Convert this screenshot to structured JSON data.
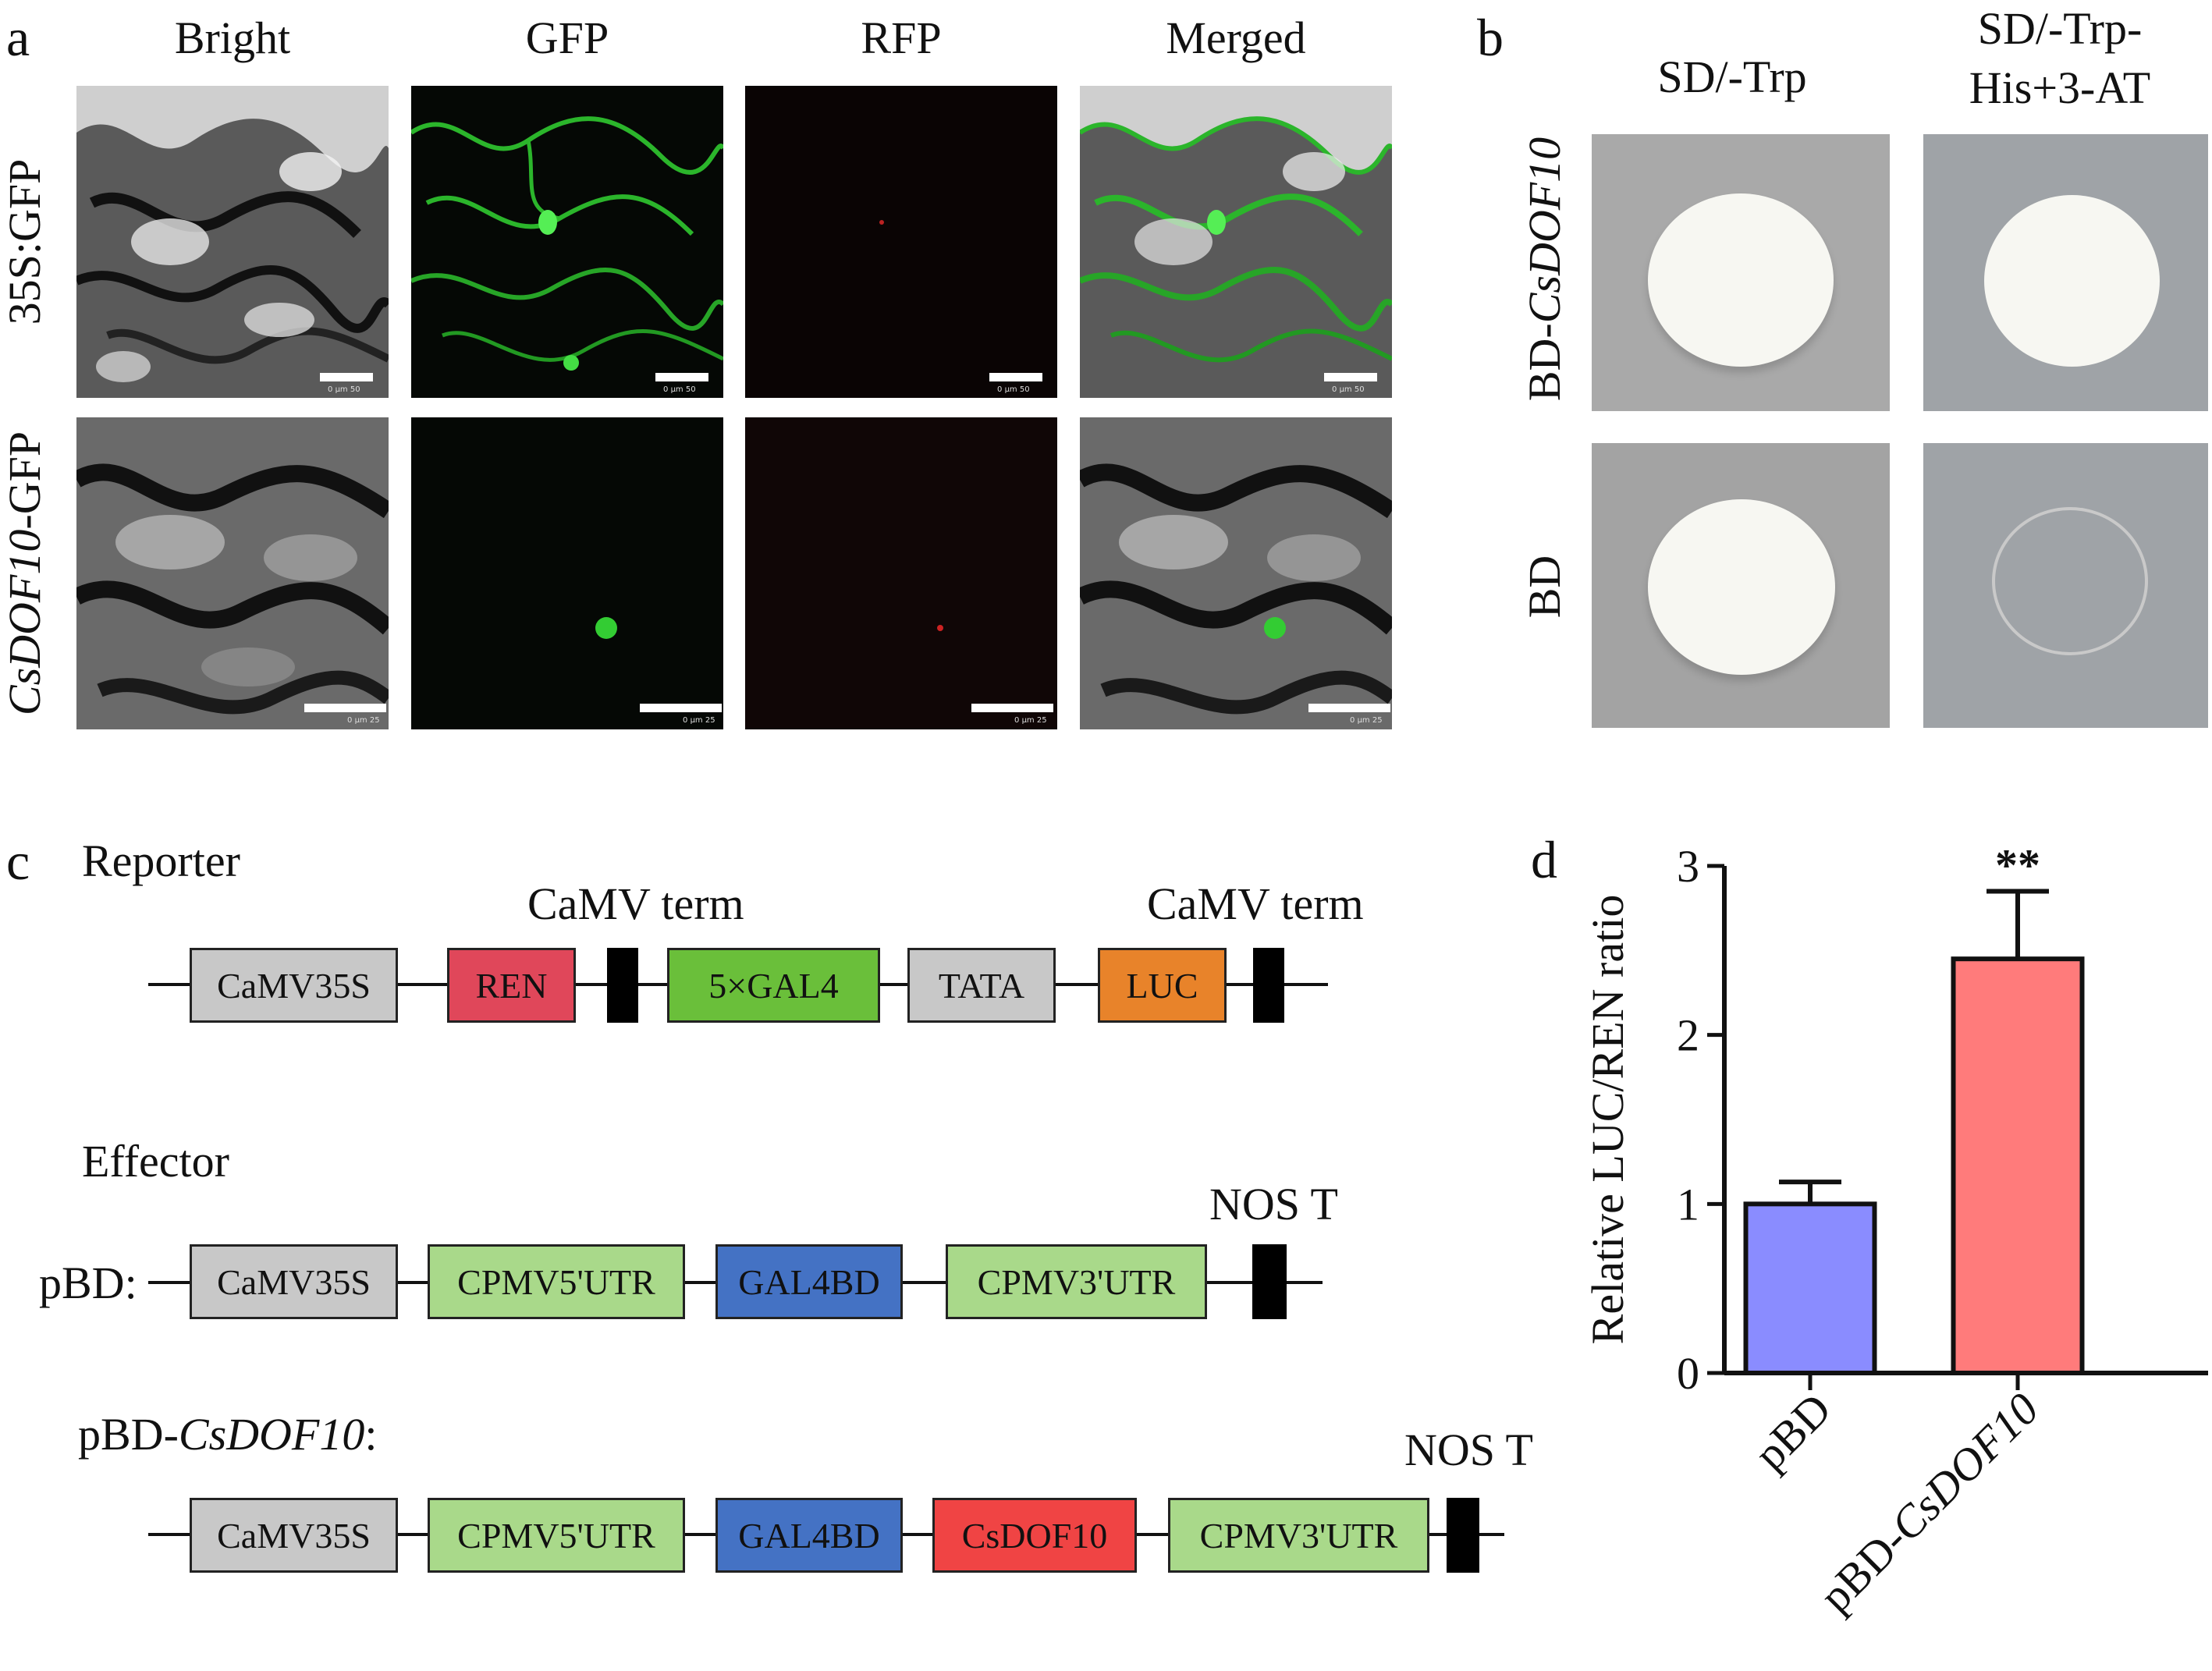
{
  "panel_a": {
    "label": "a",
    "columns": [
      "Bright",
      "GFP",
      "RFP",
      "Merged"
    ],
    "rows": [
      {
        "name_main": "35S:GFP",
        "name_italic": ""
      },
      {
        "name_main": "-GFP",
        "name_italic": "CsDOF10"
      }
    ],
    "scale_text": [
      "0",
      "µm",
      "50",
      "25"
    ]
  },
  "panel_b": {
    "label": "b",
    "columns": [
      "SD/-Trp",
      "SD/-Trp-",
      "His+3-AT"
    ],
    "rows": [
      {
        "prefix": "BD-",
        "italic": "CsDOF10"
      },
      {
        "prefix": "BD",
        "italic": ""
      }
    ]
  },
  "panel_c": {
    "label": "c",
    "reporter": {
      "title": "Reporter",
      "term1": "CaMV term",
      "term2": "CaMV term",
      "boxes": [
        "CaMV35S",
        "REN",
        "5×GAL4",
        "TATA",
        "LUC"
      ]
    },
    "effector": {
      "title": "Effector",
      "nos": "NOS T",
      "pbd_label": "pBD:",
      "boxes": [
        "CaMV35S",
        "CPMV5'UTR",
        "GAL4BD",
        "CPMV3'UTR"
      ]
    },
    "effector2": {
      "label_prefix": "pBD-",
      "label_italic": "CsDOF10",
      "label_suffix": ":",
      "nos": "NOS T",
      "boxes": [
        "CaMV35S",
        "CPMV5'UTR",
        "GAL4BD",
        "CsDOF10",
        "CPMV3'UTR"
      ]
    },
    "colors": {
      "gray": "#c8c8c8",
      "ren": "#e0475a",
      "gal4": "#6abf3a",
      "luc": "#e8832a",
      "light_green": "#a9d98a",
      "blue": "#4472c4",
      "red": "#f04444"
    }
  },
  "panel_d": {
    "label": "d",
    "ylabel": "Relative LUC/REN ratio",
    "significance": "**"
  },
  "chart_data": {
    "type": "bar",
    "categories": [
      "pBD",
      "pBD-CsDOF10"
    ],
    "values": [
      1.0,
      2.45
    ],
    "errors": [
      0.13,
      0.4
    ],
    "colors": [
      "#8a8cff",
      "#ff7b7b"
    ],
    "ylim": [
      0,
      3
    ],
    "yticks": [
      0,
      1,
      2,
      3
    ],
    "ylabel": "Relative LUC/REN ratio"
  }
}
